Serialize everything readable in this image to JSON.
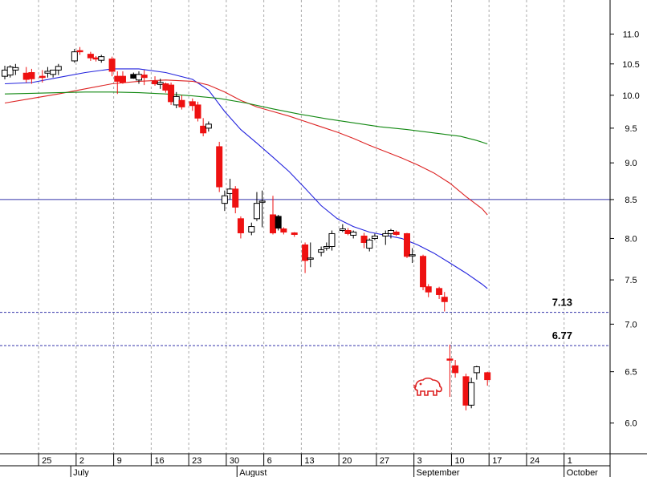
{
  "chart_data": {
    "type": "candlestick",
    "title": "",
    "xlabel": "",
    "ylabel": "",
    "ylim": [
      5.72,
      11.6
    ],
    "y_scale": "log",
    "y_ticks": [
      "6.0",
      "6.5",
      "7.0",
      "7.5",
      "8.0",
      "8.5",
      "9.0",
      "9.5",
      "10.0",
      "10.5",
      "11.0"
    ],
    "day_labels": [
      {
        "label": "25",
        "x": 6
      },
      {
        "label": "2",
        "x": 13
      },
      {
        "label": "9",
        "x": 20
      },
      {
        "label": "16",
        "x": 27
      },
      {
        "label": "23",
        "x": 34
      },
      {
        "label": "30",
        "x": 41
      },
      {
        "label": "6",
        "x": 48
      },
      {
        "label": "13",
        "x": 55
      },
      {
        "label": "20",
        "x": 62
      },
      {
        "label": "27",
        "x": 69
      },
      {
        "label": "3",
        "x": 76
      },
      {
        "label": "10",
        "x": 83
      },
      {
        "label": "17",
        "x": 90
      },
      {
        "label": "24",
        "x": 97
      },
      {
        "label": "1",
        "x": 104
      }
    ],
    "month_labels": [
      {
        "label": "July",
        "x": 12
      },
      {
        "label": "August",
        "x": 43
      },
      {
        "label": "September",
        "x": 76
      },
      {
        "label": "October",
        "x": 104
      }
    ],
    "x_range": [
      0,
      110
    ],
    "levels": [
      {
        "label": "",
        "value": 8.5,
        "style": "solid"
      },
      {
        "label": "7.13",
        "value": 7.13,
        "style": "dashed"
      },
      {
        "label": "6.77",
        "value": 6.77,
        "style": "dashed"
      }
    ],
    "colors": {
      "up": "#ffffff",
      "down": "#ee1111",
      "down_dark": "#000000",
      "ma_short": "#2222dd",
      "ma_mid": "#dd2222",
      "ma_long": "#118811",
      "level_line": "#3333aa",
      "grid": "#aaaaaa"
    },
    "candles": [
      {
        "x": 0,
        "o": 10.3,
        "h": 10.47,
        "l": 10.25,
        "c": 10.4
      },
      {
        "x": 1,
        "o": 10.32,
        "h": 10.48,
        "l": 10.28,
        "c": 10.45
      },
      {
        "x": 2,
        "o": 10.4,
        "h": 10.5,
        "l": 10.32,
        "c": 10.44
      },
      {
        "x": 4,
        "o": 10.35,
        "h": 10.45,
        "l": 10.2,
        "c": 10.25
      },
      {
        "x": 5,
        "o": 10.36,
        "h": 10.42,
        "l": 10.18,
        "c": 10.26
      },
      {
        "x": 7,
        "o": 10.3,
        "h": 10.4,
        "l": 10.2,
        "c": 10.28
      },
      {
        "x": 8,
        "o": 10.35,
        "h": 10.45,
        "l": 10.28,
        "c": 10.38
      },
      {
        "x": 9,
        "o": 10.33,
        "h": 10.4,
        "l": 10.28,
        "c": 10.4
      },
      {
        "x": 10,
        "o": 10.4,
        "h": 10.5,
        "l": 10.32,
        "c": 10.46
      },
      {
        "x": 13,
        "o": 10.55,
        "h": 10.75,
        "l": 10.52,
        "c": 10.7
      },
      {
        "x": 14,
        "o": 10.72,
        "h": 10.78,
        "l": 10.65,
        "c": 10.7
      },
      {
        "x": 16,
        "o": 10.66,
        "h": 10.7,
        "l": 10.55,
        "c": 10.6
      },
      {
        "x": 17,
        "o": 10.6,
        "h": 10.63,
        "l": 10.54,
        "c": 10.58
      },
      {
        "x": 18,
        "o": 10.56,
        "h": 10.65,
        "l": 10.52,
        "c": 10.62
      },
      {
        "x": 20,
        "o": 10.58,
        "h": 10.62,
        "l": 10.3,
        "c": 10.38
      },
      {
        "x": 21,
        "o": 10.3,
        "h": 10.38,
        "l": 10.02,
        "c": 10.22
      },
      {
        "x": 22,
        "o": 10.3,
        "h": 10.38,
        "l": 10.18,
        "c": 10.2
      },
      {
        "x": 24,
        "o": 10.33,
        "h": 10.36,
        "l": 10.26,
        "c": 10.27,
        "dark": true
      },
      {
        "x": 25,
        "o": 10.24,
        "h": 10.38,
        "l": 10.18,
        "c": 10.33
      },
      {
        "x": 26,
        "o": 10.32,
        "h": 10.4,
        "l": 10.16,
        "c": 10.28
      },
      {
        "x": 28,
        "o": 10.22,
        "h": 10.3,
        "l": 10.15,
        "c": 10.18
      },
      {
        "x": 29,
        "o": 10.17,
        "h": 10.26,
        "l": 10.1,
        "c": 10.2
      },
      {
        "x": 30,
        "o": 10.18,
        "h": 10.2,
        "l": 10.04,
        "c": 10.08
      },
      {
        "x": 31,
        "o": 10.16,
        "h": 10.2,
        "l": 9.85,
        "c": 9.9
      },
      {
        "x": 32,
        "o": 9.85,
        "h": 10.05,
        "l": 9.8,
        "c": 9.98
      },
      {
        "x": 33,
        "o": 9.92,
        "h": 10.0,
        "l": 9.78,
        "c": 9.82
      },
      {
        "x": 35,
        "o": 9.9,
        "h": 9.95,
        "l": 9.76,
        "c": 9.84
      },
      {
        "x": 36,
        "o": 9.85,
        "h": 9.9,
        "l": 9.6,
        "c": 9.65
      },
      {
        "x": 37,
        "o": 9.53,
        "h": 9.65,
        "l": 9.38,
        "c": 9.43
      },
      {
        "x": 38,
        "o": 9.5,
        "h": 9.6,
        "l": 9.45,
        "c": 9.56
      },
      {
        "x": 40,
        "o": 9.23,
        "h": 9.3,
        "l": 8.6,
        "c": 8.67
      },
      {
        "x": 41,
        "o": 8.45,
        "h": 8.62,
        "l": 8.35,
        "c": 8.55
      },
      {
        "x": 42,
        "o": 8.58,
        "h": 8.78,
        "l": 8.5,
        "c": 8.64
      },
      {
        "x": 43,
        "o": 8.64,
        "h": 8.68,
        "l": 8.32,
        "c": 8.4
      },
      {
        "x": 44,
        "o": 8.25,
        "h": 8.28,
        "l": 8.0,
        "c": 8.07
      },
      {
        "x": 46,
        "o": 8.08,
        "h": 8.2,
        "l": 8.04,
        "c": 8.15
      },
      {
        "x": 47,
        "o": 8.25,
        "h": 8.6,
        "l": 8.22,
        "c": 8.45
      },
      {
        "x": 48,
        "o": 8.48,
        "h": 8.62,
        "l": 8.14,
        "c": 8.48
      },
      {
        "x": 50,
        "o": 8.3,
        "h": 8.55,
        "l": 8.05,
        "c": 8.07
      },
      {
        "x": 51,
        "o": 8.28,
        "h": 8.3,
        "l": 8.1,
        "c": 8.13,
        "dark": true
      },
      {
        "x": 52,
        "o": 8.12,
        "h": 8.14,
        "l": 8.05,
        "c": 8.08
      },
      {
        "x": 54,
        "o": 8.07,
        "h": 8.08,
        "l": 8.02,
        "c": 8.05
      },
      {
        "x": 56,
        "o": 7.92,
        "h": 7.95,
        "l": 7.58,
        "c": 7.73
      },
      {
        "x": 57,
        "o": 7.75,
        "h": 7.95,
        "l": 7.65,
        "c": 7.76
      },
      {
        "x": 59,
        "o": 7.83,
        "h": 7.9,
        "l": 7.78,
        "c": 7.86
      },
      {
        "x": 60,
        "o": 7.88,
        "h": 7.95,
        "l": 7.85,
        "c": 7.9
      },
      {
        "x": 61,
        "o": 7.9,
        "h": 8.1,
        "l": 7.85,
        "c": 8.06
      },
      {
        "x": 63,
        "o": 8.1,
        "h": 8.18,
        "l": 8.08,
        "c": 8.12
      },
      {
        "x": 64,
        "o": 8.1,
        "h": 8.13,
        "l": 8.04,
        "c": 8.06
      },
      {
        "x": 65,
        "o": 8.04,
        "h": 8.1,
        "l": 8.0,
        "c": 8.08
      },
      {
        "x": 67,
        "o": 8.03,
        "h": 8.07,
        "l": 7.88,
        "c": 7.95
      },
      {
        "x": 68,
        "o": 7.88,
        "h": 8.0,
        "l": 7.84,
        "c": 7.98
      },
      {
        "x": 69,
        "o": 8.0,
        "h": 8.06,
        "l": 7.98,
        "c": 8.03
      },
      {
        "x": 71,
        "o": 8.03,
        "h": 8.1,
        "l": 7.92,
        "c": 8.06
      },
      {
        "x": 72,
        "o": 8.06,
        "h": 8.12,
        "l": 8.0,
        "c": 8.1
      },
      {
        "x": 73,
        "o": 8.08,
        "h": 8.1,
        "l": 8.03,
        "c": 8.05
      },
      {
        "x": 75,
        "o": 8.06,
        "h": 8.07,
        "l": 7.76,
        "c": 7.78
      },
      {
        "x": 76,
        "o": 7.8,
        "h": 7.88,
        "l": 7.7,
        "c": 7.8
      },
      {
        "x": 78,
        "o": 7.78,
        "h": 7.8,
        "l": 7.38,
        "c": 7.42
      },
      {
        "x": 79,
        "o": 7.42,
        "h": 7.45,
        "l": 7.3,
        "c": 7.36
      },
      {
        "x": 81,
        "o": 7.4,
        "h": 7.42,
        "l": 7.28,
        "c": 7.33
      },
      {
        "x": 82,
        "o": 7.3,
        "h": 7.36,
        "l": 7.14,
        "c": 7.25
      },
      {
        "x": 83,
        "o": 6.63,
        "h": 6.78,
        "l": 6.25,
        "c": 6.62
      },
      {
        "x": 84,
        "o": 6.56,
        "h": 6.62,
        "l": 6.44,
        "c": 6.49
      },
      {
        "x": 86,
        "o": 6.45,
        "h": 6.48,
        "l": 6.12,
        "c": 6.17
      },
      {
        "x": 87,
        "o": 6.17,
        "h": 6.44,
        "l": 6.14,
        "c": 6.39
      },
      {
        "x": 88,
        "o": 6.49,
        "h": 6.56,
        "l": 6.42,
        "c": 6.55
      },
      {
        "x": 90,
        "o": 6.49,
        "h": 6.5,
        "l": 6.36,
        "c": 6.42
      }
    ],
    "ma_short": [
      [
        0,
        10.18
      ],
      [
        5,
        10.2
      ],
      [
        10,
        10.28
      ],
      [
        15,
        10.36
      ],
      [
        20,
        10.42
      ],
      [
        25,
        10.42
      ],
      [
        30,
        10.36
      ],
      [
        35,
        10.25
      ],
      [
        38,
        10.08
      ],
      [
        41,
        9.75
      ],
      [
        44,
        9.48
      ],
      [
        47,
        9.28
      ],
      [
        50,
        9.08
      ],
      [
        53,
        8.88
      ],
      [
        56,
        8.65
      ],
      [
        59,
        8.42
      ],
      [
        62,
        8.25
      ],
      [
        65,
        8.15
      ],
      [
        68,
        8.08
      ],
      [
        71,
        8.04
      ],
      [
        74,
        8.0
      ],
      [
        77,
        7.92
      ],
      [
        80,
        7.82
      ],
      [
        83,
        7.7
      ],
      [
        86,
        7.58
      ],
      [
        89,
        7.45
      ],
      [
        90,
        7.4
      ]
    ],
    "ma_mid": [
      [
        0,
        9.88
      ],
      [
        5,
        9.95
      ],
      [
        10,
        10.02
      ],
      [
        15,
        10.1
      ],
      [
        20,
        10.18
      ],
      [
        25,
        10.22
      ],
      [
        30,
        10.24
      ],
      [
        35,
        10.22
      ],
      [
        38,
        10.16
      ],
      [
        41,
        10.05
      ],
      [
        44,
        9.92
      ],
      [
        47,
        9.82
      ],
      [
        50,
        9.75
      ],
      [
        53,
        9.68
      ],
      [
        56,
        9.6
      ],
      [
        59,
        9.52
      ],
      [
        62,
        9.44
      ],
      [
        65,
        9.35
      ],
      [
        68,
        9.25
      ],
      [
        71,
        9.16
      ],
      [
        74,
        9.07
      ],
      [
        77,
        8.97
      ],
      [
        80,
        8.86
      ],
      [
        83,
        8.72
      ],
      [
        86,
        8.54
      ],
      [
        89,
        8.38
      ],
      [
        90,
        8.3
      ]
    ],
    "ma_long": [
      [
        0,
        10.02
      ],
      [
        5,
        10.03
      ],
      [
        10,
        10.04
      ],
      [
        15,
        10.05
      ],
      [
        20,
        10.05
      ],
      [
        25,
        10.04
      ],
      [
        30,
        10.02
      ],
      [
        35,
        9.99
      ],
      [
        40,
        9.95
      ],
      [
        45,
        9.88
      ],
      [
        50,
        9.79
      ],
      [
        55,
        9.71
      ],
      [
        60,
        9.64
      ],
      [
        65,
        9.58
      ],
      [
        70,
        9.52
      ],
      [
        75,
        9.48
      ],
      [
        80,
        9.43
      ],
      [
        85,
        9.38
      ],
      [
        88,
        9.32
      ],
      [
        90,
        9.27
      ]
    ]
  }
}
